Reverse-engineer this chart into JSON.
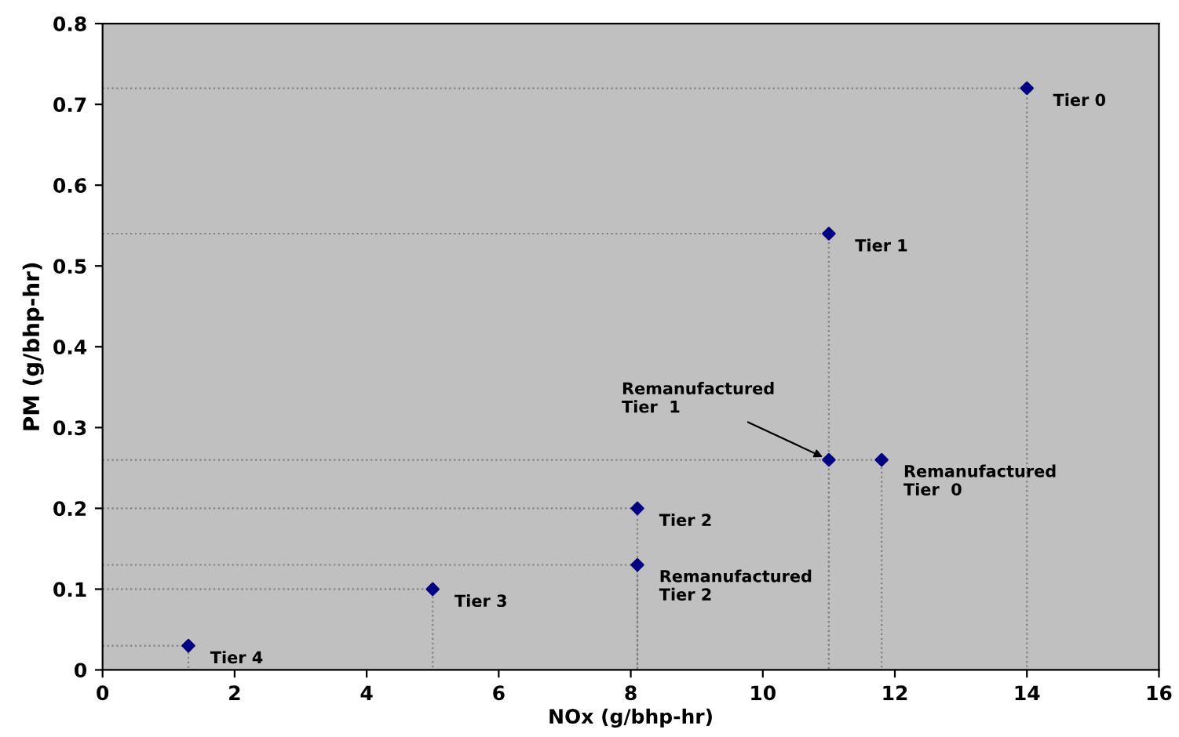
{
  "chart_data": {
    "type": "scatter",
    "xlabel": "NOx (g/bhp-hr)",
    "ylabel": "PM (g/bhp-hr)",
    "x": [
      14,
      11,
      11,
      11.8,
      8.1,
      8.1,
      5,
      1.3
    ],
    "series": [
      {
        "color": "#000080",
        "marker": "diamond",
        "values": [
          0.72,
          0.54,
          0.26,
          0.26,
          0.2,
          0.13,
          0.1,
          0.03
        ]
      },
      {
        "type": "line",
        "line_style": "dotted",
        "color": "#808080",
        "x": [
          0,
          14,
          14
        ],
        "values": [
          0.72,
          0.72,
          0
        ]
      },
      {
        "type": "line",
        "line_style": "dotted",
        "color": "#808080",
        "x": [
          0,
          11,
          11
        ],
        "values": [
          0.54,
          0.54,
          0
        ]
      },
      {
        "type": "line",
        "line_style": "dotted",
        "color": "#808080",
        "x": [
          0,
          11,
          11
        ],
        "values": [
          0.26,
          0.26,
          0
        ]
      },
      {
        "type": "line",
        "line_style": "dotted",
        "color": "#808080",
        "x": [
          11,
          11.8,
          11.8
        ],
        "values": [
          0.26,
          0.26,
          0
        ]
      },
      {
        "type": "line",
        "line_style": "dotted",
        "color": "#808080",
        "x": [
          0,
          8.1,
          8.1
        ],
        "values": [
          0.2,
          0.2,
          0
        ]
      },
      {
        "type": "line",
        "line_style": "dotted",
        "color": "#808080",
        "x": [
          0,
          8.1,
          8.1
        ],
        "values": [
          0.13,
          0.13,
          0
        ]
      },
      {
        "type": "line",
        "line_style": "dotted",
        "color": "#808080",
        "x": [
          0,
          5,
          5
        ],
        "values": [
          0.1,
          0.1,
          0
        ]
      },
      {
        "type": "line",
        "line_style": "dotted",
        "color": "#808080",
        "x": [
          0,
          1.3,
          1.3
        ],
        "values": [
          0.03,
          0.03,
          0
        ]
      }
    ],
    "legend": false,
    "xlim": [
      0,
      16
    ],
    "xticks": [
      0,
      2,
      4,
      6,
      8,
      10,
      12,
      14,
      16
    ],
    "ylim": [
      0,
      0.8
    ],
    "yticks": [
      0,
      0.1,
      0.2,
      0.3,
      0.4,
      0.5,
      0.6,
      0.7,
      0.8
    ],
    "annotations": [
      {
        "text": "Tier 0",
        "x": 14,
        "y": 0.72
      },
      {
        "text": "Tier 1",
        "x": 11,
        "y": 0.54
      },
      {
        "text": "Remanufactured\nTier  1",
        "x": 11,
        "y": 0.26
      },
      {
        "text": "Remanufactured\nTier  0",
        "x": 11.8,
        "y": 0.26
      },
      {
        "text": "Tier 2",
        "x": 8.1,
        "y": 0.2
      },
      {
        "text": "Remanufactured\nTier 2",
        "x": 8.1,
        "y": 0.13
      },
      {
        "text": "Tier 3",
        "x": 5,
        "y": 0.1
      },
      {
        "text": "Tier 4",
        "x": 1.3,
        "y": 0.03
      }
    ]
  }
}
